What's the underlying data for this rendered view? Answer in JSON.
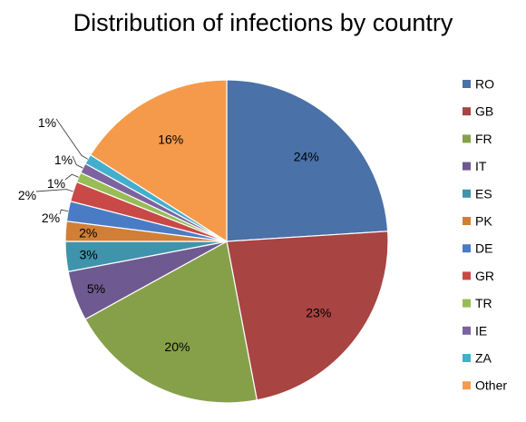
{
  "chart_data": {
    "type": "pie",
    "title": "Distribution of infections by country",
    "categories": [
      "RO",
      "GB",
      "FR",
      "IT",
      "ES",
      "PK",
      "DE",
      "GR",
      "TR",
      "IE",
      "ZA",
      "Other"
    ],
    "values": [
      24,
      23,
      20,
      5,
      3,
      2,
      2,
      2,
      1,
      1,
      1,
      16
    ],
    "labels": [
      "24%",
      "23%",
      "20%",
      "5%",
      "3%",
      "2%",
      "2%",
      "2%",
      "1%",
      "1%",
      "1%",
      "16%"
    ],
    "colors": [
      "#4A71A8",
      "#A84442",
      "#86A04A",
      "#6E5990",
      "#3F93AA",
      "#D17F36",
      "#4A7CC6",
      "#C94947",
      "#98BD56",
      "#7C63A0",
      "#44AFCD",
      "#F59A4B"
    ],
    "legend_position": "right"
  }
}
